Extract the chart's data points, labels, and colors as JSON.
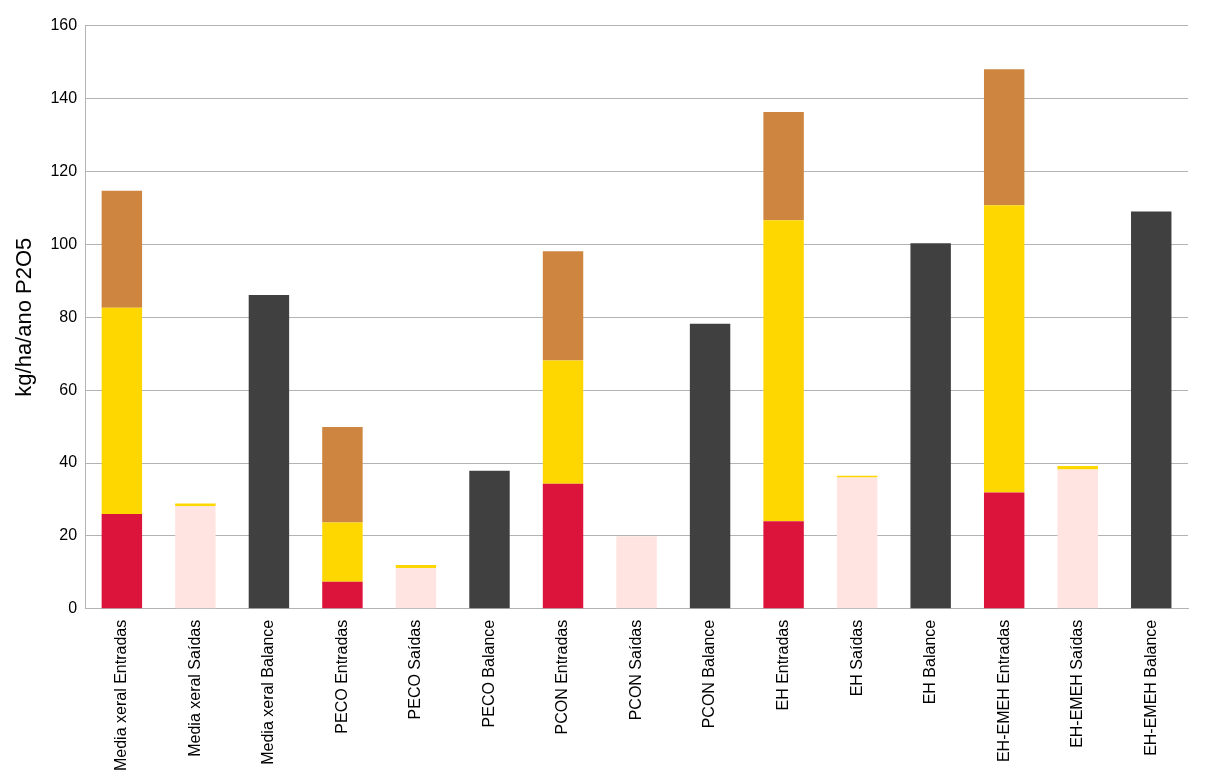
{
  "chart_data": {
    "type": "bar",
    "stacked": true,
    "ylabel": "kg/ha/ano P2O5",
    "categories": [
      "Media xeral Entradas",
      "Media xeral Saídas",
      "Media xeral Balance",
      "PECO Entradas",
      "PECO Saídas",
      "PECO Balance",
      "PCON Entradas",
      "PCON Saídas",
      "PCON Balance",
      "EH Entradas",
      "EH Saídas",
      "EH Balance",
      "EH-EMEH Entradas",
      "EH-EMEH Saídas",
      "EH-EMEH Balance"
    ],
    "series": [
      {
        "color": "#dc143c",
        "values": [
          26,
          null,
          null,
          7.4,
          null,
          null,
          34.3,
          null,
          null,
          24,
          null,
          null,
          31.9,
          null,
          null
        ]
      },
      {
        "color": "#ffe4e1",
        "values": [
          null,
          28.2,
          null,
          null,
          11.2,
          null,
          null,
          19.9,
          null,
          null,
          36,
          null,
          null,
          38.2,
          null
        ]
      },
      {
        "color": "#ffd700",
        "values": [
          56.6,
          0.7,
          null,
          16.3,
          0.8,
          null,
          33.8,
          null,
          null,
          82.6,
          0.5,
          null,
          78.8,
          1,
          null
        ]
      },
      {
        "color": "#cd853f",
        "values": [
          32.1,
          null,
          null,
          26.2,
          null,
          null,
          30,
          null,
          null,
          29.7,
          null,
          null,
          37.3,
          null,
          null
        ]
      },
      {
        "color": "#404040",
        "values": [
          null,
          null,
          86.1,
          null,
          null,
          37.9,
          null,
          null,
          78.2,
          null,
          null,
          100.3,
          null,
          null,
          109
        ]
      }
    ],
    "ylim": [
      0,
      160
    ],
    "yticks": [
      0,
      20,
      40,
      60,
      80,
      100,
      120,
      140,
      160
    ],
    "grid": "y",
    "legend": false
  }
}
